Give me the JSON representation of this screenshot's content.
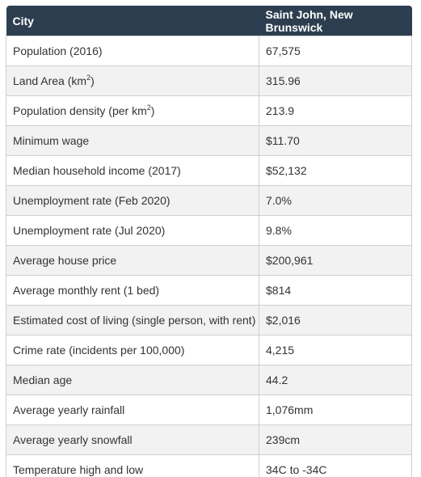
{
  "table": {
    "header": {
      "col1": "City",
      "col2": "Saint John, New Brunswick"
    },
    "rows": [
      {
        "label": "Population (2016)",
        "value": "67,575"
      },
      {
        "label": "Land Area (km",
        "sup": "2",
        "label_suffix": ")",
        "value": "315.96"
      },
      {
        "label": "Population density (per km",
        "sup": "2",
        "label_suffix": ")",
        "value": "213.9"
      },
      {
        "label": "Minimum wage",
        "value": "$11.70"
      },
      {
        "label": "Median household income (2017)",
        "value": "$52,132"
      },
      {
        "label": "Unemployment rate (Feb 2020)",
        "value": "7.0%"
      },
      {
        "label": "Unemployment rate (Jul 2020)",
        "value": "9.8%"
      },
      {
        "label": "Average house price",
        "value": "$200,961"
      },
      {
        "label": "Average monthly rent (1 bed)",
        "value": "$814"
      },
      {
        "label": "Estimated cost of living (single person, with rent)",
        "value": "$2,016"
      },
      {
        "label": "Crime rate (incidents per 100,000)",
        "value": "4,215"
      },
      {
        "label": "Median age",
        "value": "44.2"
      },
      {
        "label": "Average yearly rainfall",
        "value": "1,076mm"
      },
      {
        "label": "Average yearly snowfall",
        "value": "239cm"
      },
      {
        "label": "Temperature high and low",
        "value": "34C to -34C"
      }
    ]
  },
  "colors": {
    "header_bg": "#2d3e50",
    "header_text": "#ffffff",
    "row_alt_bg": "#f2f2f2",
    "border": "#cfcfcf"
  }
}
